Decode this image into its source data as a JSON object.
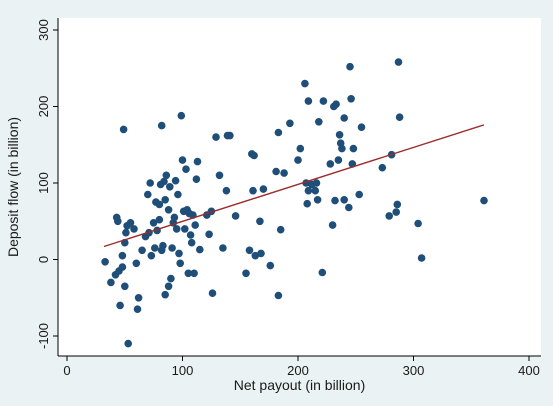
{
  "chart_data": {
    "type": "scatter",
    "xlabel": "Net payout (in billion)",
    "ylabel": "Deposit flow (in billion)",
    "xlim": [
      0,
      400
    ],
    "ylim": [
      -100,
      300
    ],
    "xticks": [
      0,
      100,
      200,
      300,
      400
    ],
    "yticks": [
      -100,
      0,
      100,
      200,
      300
    ],
    "xtick_labels": [
      "0",
      "100",
      "200",
      "300",
      "400"
    ],
    "ytick_labels": [
      "-100",
      "0",
      "100",
      "200",
      "300"
    ],
    "grid": false,
    "legend": "none",
    "colors": {
      "background": "#eaf2f3",
      "plot_area": "#ffffff",
      "marker": "#1f4e78",
      "fit_line": "#9c2b2b",
      "axis": "#000000"
    },
    "fit_line": {
      "x": [
        32,
        361
      ],
      "y": [
        17,
        176
      ]
    },
    "series": [
      {
        "points": [
          [
            33,
            -3
          ],
          [
            38,
            -30
          ],
          [
            42,
            -20
          ],
          [
            43,
            55
          ],
          [
            44,
            50
          ],
          [
            45,
            -15
          ],
          [
            46,
            -60
          ],
          [
            48,
            -10
          ],
          [
            48,
            5
          ],
          [
            49,
            170
          ],
          [
            50,
            22
          ],
          [
            50,
            -35
          ],
          [
            51,
            35
          ],
          [
            52,
            44
          ],
          [
            53,
            -110
          ],
          [
            55,
            48
          ],
          [
            58,
            40
          ],
          [
            60,
            -5
          ],
          [
            61,
            -65
          ],
          [
            62,
            -50
          ],
          [
            65,
            12
          ],
          [
            68,
            30
          ],
          [
            70,
            85
          ],
          [
            71,
            35
          ],
          [
            72,
            100
          ],
          [
            73,
            5
          ],
          [
            75,
            48
          ],
          [
            76,
            15
          ],
          [
            77,
            75
          ],
          [
            78,
            38
          ],
          [
            80,
            72
          ],
          [
            80,
            52
          ],
          [
            81,
            98
          ],
          [
            82,
            12
          ],
          [
            82,
            175
          ],
          [
            83,
            18
          ],
          [
            84,
            102
          ],
          [
            85,
            78
          ],
          [
            85,
            -46
          ],
          [
            86,
            110
          ],
          [
            88,
            -35
          ],
          [
            88,
            65
          ],
          [
            89,
            95
          ],
          [
            90,
            -25
          ],
          [
            91,
            15
          ],
          [
            92,
            48
          ],
          [
            93,
            55
          ],
          [
            94,
            103
          ],
          [
            95,
            40
          ],
          [
            96,
            85
          ],
          [
            97,
            8
          ],
          [
            98,
            -5
          ],
          [
            99,
            188
          ],
          [
            100,
            130
          ],
          [
            101,
            63
          ],
          [
            102,
            40
          ],
          [
            103,
            118
          ],
          [
            104,
            65
          ],
          [
            105,
            -18
          ],
          [
            106,
            60
          ],
          [
            107,
            32
          ],
          [
            108,
            22
          ],
          [
            109,
            58
          ],
          [
            110,
            -18
          ],
          [
            111,
            45
          ],
          [
            112,
            105
          ],
          [
            113,
            128
          ],
          [
            115,
            13
          ],
          [
            121,
            58
          ],
          [
            123,
            33
          ],
          [
            125,
            63
          ],
          [
            126,
            -44
          ],
          [
            129,
            160
          ],
          [
            132,
            110
          ],
          [
            135,
            15
          ],
          [
            138,
            90
          ],
          [
            139,
            162
          ],
          [
            141,
            162
          ],
          [
            146,
            57
          ],
          [
            155,
            -18
          ],
          [
            158,
            12
          ],
          [
            160,
            138
          ],
          [
            161,
            90
          ],
          [
            162,
            136
          ],
          [
            163,
            5
          ],
          [
            167,
            50
          ],
          [
            168,
            8
          ],
          [
            170,
            92
          ],
          [
            176,
            -8
          ],
          [
            181,
            115
          ],
          [
            183,
            -47
          ],
          [
            183,
            166
          ],
          [
            185,
            39
          ],
          [
            188,
            113
          ],
          [
            193,
            178
          ],
          [
            200,
            130
          ],
          [
            202,
            145
          ],
          [
            206,
            230
          ],
          [
            207,
            100
          ],
          [
            208,
            73
          ],
          [
            209,
            207
          ],
          [
            209,
            90
          ],
          [
            212,
            98
          ],
          [
            215,
            90
          ],
          [
            216,
            100
          ],
          [
            217,
            78
          ],
          [
            218,
            180
          ],
          [
            221,
            -17
          ],
          [
            222,
            207
          ],
          [
            228,
            125
          ],
          [
            230,
            45
          ],
          [
            231,
            200
          ],
          [
            232,
            77
          ],
          [
            233,
            203
          ],
          [
            235,
            130
          ],
          [
            236,
            163
          ],
          [
            237,
            152
          ],
          [
            238,
            145
          ],
          [
            240,
            78
          ],
          [
            240,
            185
          ],
          [
            244,
            68
          ],
          [
            245,
            252
          ],
          [
            246,
            210
          ],
          [
            247,
            125
          ],
          [
            248,
            145
          ],
          [
            253,
            85
          ],
          [
            255,
            173
          ],
          [
            273,
            120
          ],
          [
            279,
            57
          ],
          [
            281,
            137
          ],
          [
            285,
            62
          ],
          [
            286,
            72
          ],
          [
            287,
            258
          ],
          [
            288,
            186
          ],
          [
            304,
            47
          ],
          [
            307,
            2
          ],
          [
            361,
            77
          ]
        ]
      }
    ]
  }
}
